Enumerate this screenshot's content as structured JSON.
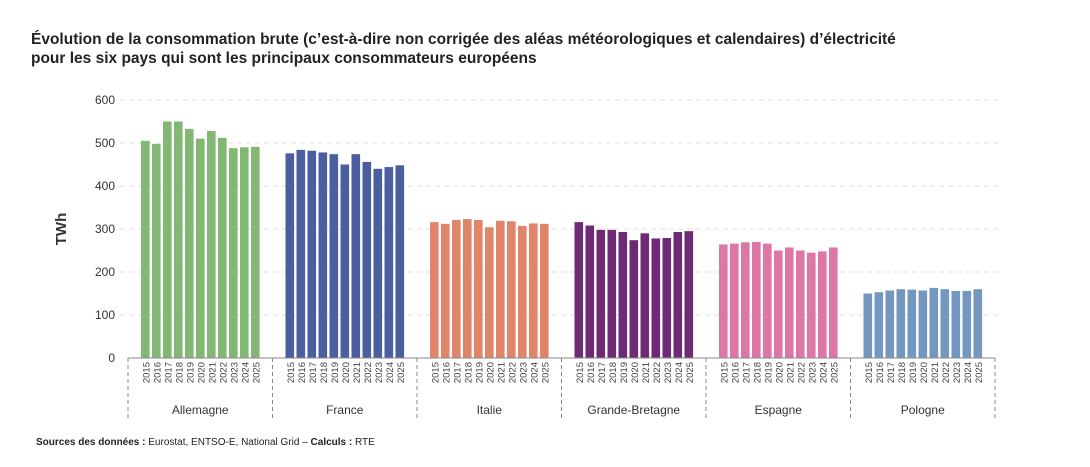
{
  "title_line1": "Évolution de la consommation brute (c’est-à-dire non corrigée des aléas météorologiques et calendaires) d’électricité",
  "title_line2": "pour les six pays qui sont les principaux consommateurs européens",
  "source": {
    "label1": "Sources des données :",
    "text1": " Eurostat, ENTSO-E, National Grid – ",
    "label2": "Calculs :",
    "text2": " RTE"
  },
  "chart_data": {
    "type": "bar",
    "title": "Évolution de la consommation brute (c’est-à-dire non corrigée des aléas météorologiques et calendaires) d’électricité pour les six pays qui sont les principaux consommateurs européens",
    "ylabel": "TWh",
    "ylim": [
      0,
      600
    ],
    "yticks": [
      0,
      100,
      200,
      300,
      400,
      500,
      600
    ],
    "grid": true,
    "years": [
      "2015",
      "2016",
      "2017",
      "2018",
      "2019",
      "2020",
      "2021",
      "2022",
      "2023",
      "2024",
      "2025"
    ],
    "groups": [
      {
        "name": "Allemagne",
        "color": "#82b874",
        "values": [
          505,
          498,
          550,
          550,
          533,
          510,
          528,
          512,
          488,
          490,
          491
        ]
      },
      {
        "name": "France",
        "color": "#4a5ea0",
        "values": [
          476,
          484,
          482,
          478,
          474,
          450,
          474,
          456,
          440,
          444,
          448
        ]
      },
      {
        "name": "Italie",
        "color": "#e0846a",
        "values": [
          316,
          312,
          321,
          323,
          321,
          304,
          319,
          318,
          307,
          313,
          312
        ]
      },
      {
        "name": "Grande-Bretagne",
        "color": "#6e2a74",
        "values": [
          316,
          308,
          298,
          298,
          293,
          274,
          290,
          278,
          279,
          293,
          295
        ]
      },
      {
        "name": "Espagne",
        "color": "#de76a6",
        "values": [
          264,
          266,
          269,
          270,
          266,
          250,
          257,
          250,
          245,
          248,
          257
        ]
      },
      {
        "name": "Pologne",
        "color": "#7497bf",
        "values": [
          150,
          153,
          157,
          160,
          159,
          157,
          163,
          160,
          156,
          156,
          160
        ]
      }
    ]
  }
}
